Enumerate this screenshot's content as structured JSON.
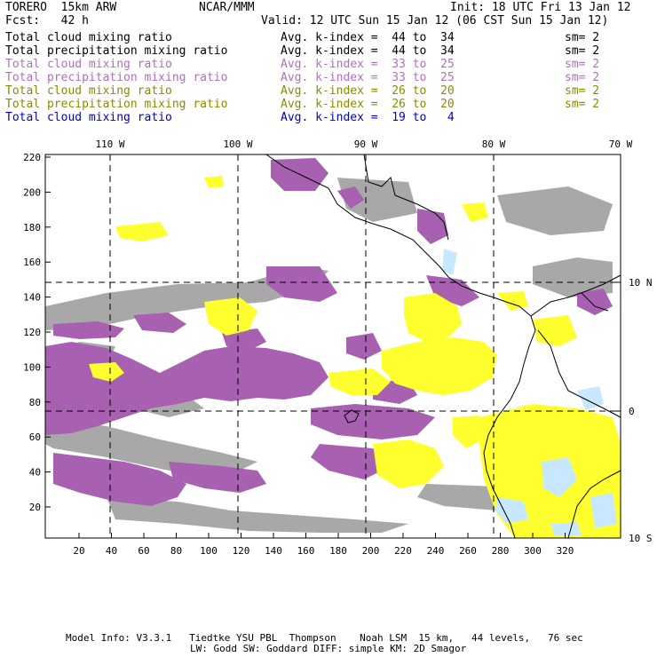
{
  "header": {
    "model": "TORERO  15km ARW",
    "org": "NCAR/MMM",
    "init": "Init: 18 UTC Fri 13 Jan 12",
    "fcst": "Fcst:   42 h",
    "valid": "Valid: 12 UTC Sun 15 Jan 12 (06 CST Sun 15 Jan 12)"
  },
  "legend": [
    {
      "field": "Total cloud mixing ratio",
      "kindex": "Avg. k-index =  44 to  34",
      "sm": "sm= 2",
      "color": "#000000"
    },
    {
      "field": "Total precipitation mixing ratio",
      "kindex": "Avg. k-index =  44 to  34",
      "sm": "sm= 2",
      "color": "#000000"
    },
    {
      "field": "Total cloud mixing ratio",
      "kindex": "Avg. k-index =  33 to  25",
      "sm": "sm= 2",
      "color": "#b070c0"
    },
    {
      "field": "Total precipitation mixing ratio",
      "kindex": "Avg. k-index =  33 to  25",
      "sm": "sm= 2",
      "color": "#b070c0"
    },
    {
      "field": "Total cloud mixing ratio",
      "kindex": "Avg. k-index =  26 to  20",
      "sm": "sm= 2",
      "color": "#8a8a00"
    },
    {
      "field": "Total precipitation mixing ratio",
      "kindex": "Avg. k-index =  26 to  20",
      "sm": "sm= 2",
      "color": "#8a8a00"
    },
    {
      "field": "Total cloud mixing ratio",
      "kindex": "Avg. k-index =  19 to   4",
      "sm": "",
      "color": "#0000cc"
    }
  ],
  "map": {
    "lon_labels": [
      "110 W",
      "100 W",
      "90 W",
      "80 W",
      "70 W"
    ],
    "lat_labels": [
      "10 N",
      "0",
      "10 S"
    ],
    "x_ticks": [
      "20",
      "40",
      "60",
      "80",
      "100",
      "120",
      "140",
      "160",
      "180",
      "200",
      "220",
      "240",
      "260",
      "280",
      "300",
      "320"
    ],
    "y_ticks": [
      "20",
      "40",
      "60",
      "80",
      "100",
      "120",
      "140",
      "160",
      "180",
      "200",
      "220"
    ],
    "colors": {
      "gray": "#a8a8a8",
      "purple": "#a860b0",
      "yellow": "#ffff30",
      "lightblue": "#c8e8ff",
      "coast": "#000000"
    }
  },
  "footer": {
    "line1": "Model Info: V3.3.1   Tiedtke YSU PBL  Thompson    Noah LSM  15 km,   44 levels,   76 sec",
    "line2": "LW: Godd SW: Goddard DIFF: simple KM: 2D Smagor"
  }
}
